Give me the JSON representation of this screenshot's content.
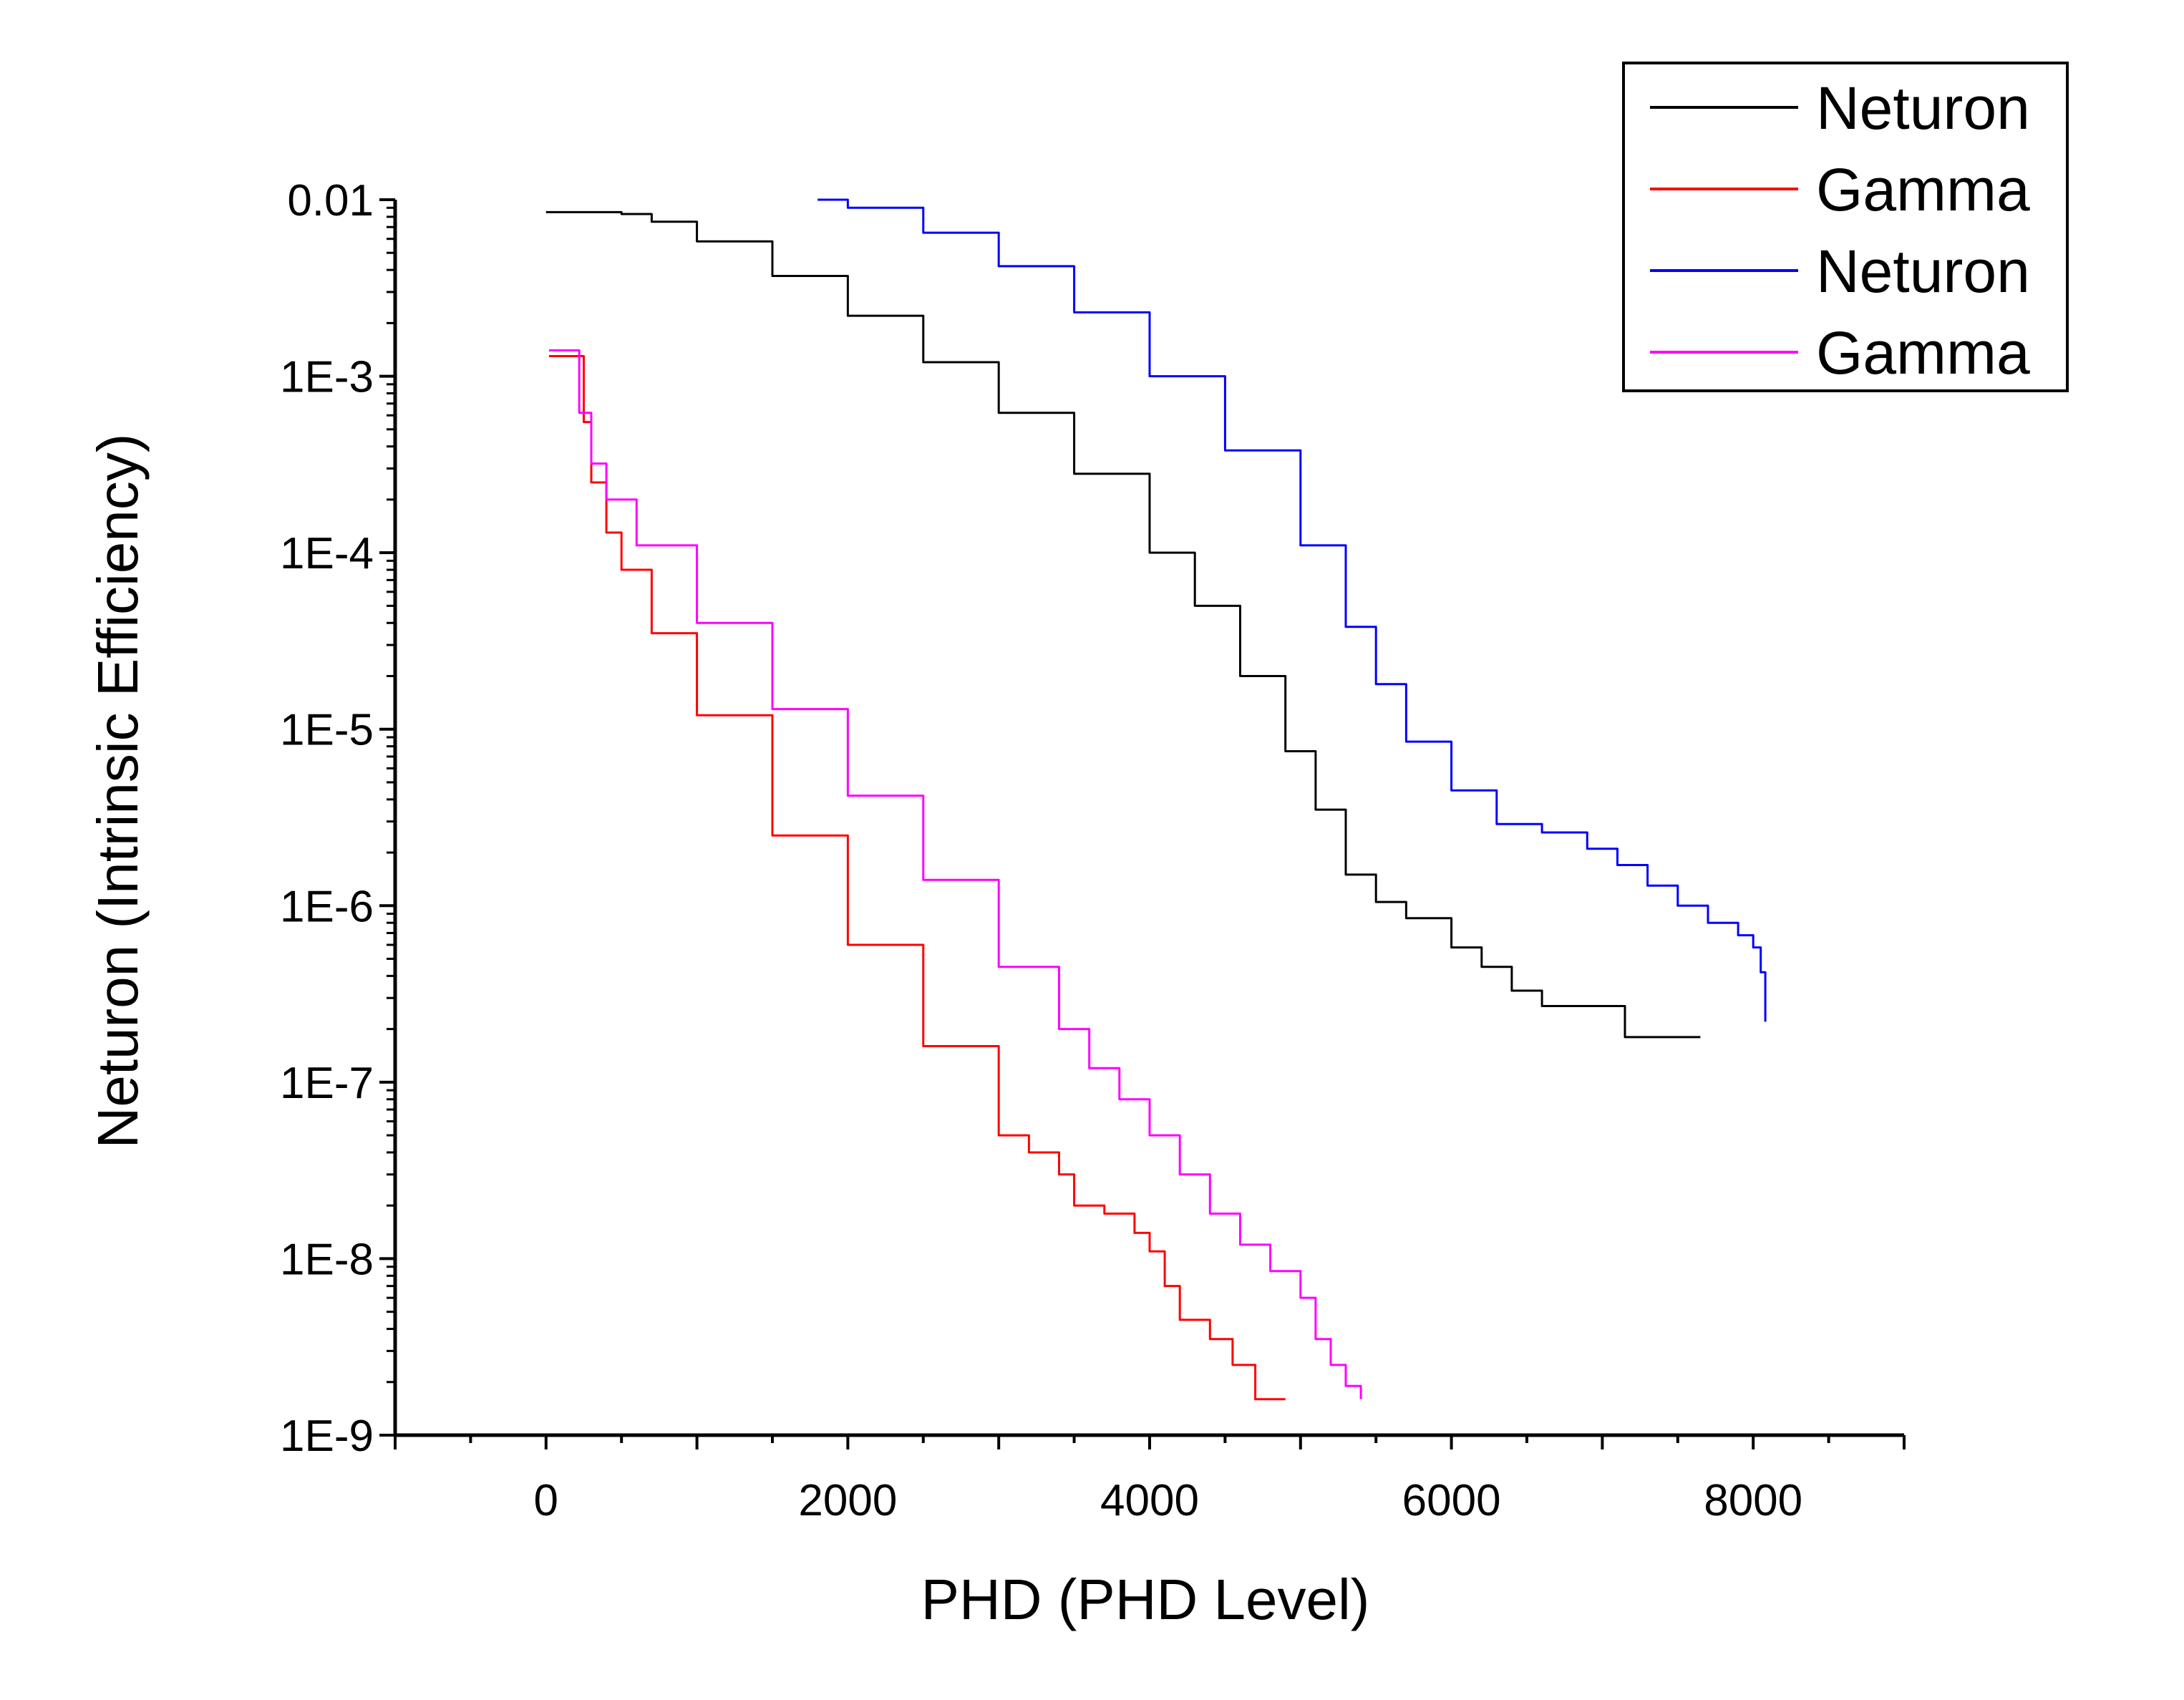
{
  "chart_data": {
    "type": "line",
    "title": "",
    "xlabel": "PHD (PHD Level)",
    "ylabel": "Neturon (Intrinsic Efficiency)",
    "xlim": [
      -1000,
      9000
    ],
    "ylim": [
      1e-09,
      0.01
    ],
    "yscale": "log",
    "x_ticks": [
      0,
      2000,
      4000,
      6000,
      8000
    ],
    "x_tick_labels": [
      "0",
      "2000",
      "4000",
      "6000",
      "8000"
    ],
    "y_ticks": [
      1e-09,
      1e-08,
      1e-07,
      1e-06,
      1e-05,
      0.0001,
      0.001,
      0.01
    ],
    "y_tick_labels": [
      "1E-9",
      "1E-8",
      "1E-7",
      "1E-6",
      "1E-5",
      "1E-4",
      "1E-3",
      "0.01"
    ],
    "grid": false,
    "legend_position": "top-right",
    "series": [
      {
        "name": "Neturon",
        "color": "#000000",
        "x": [
          0,
          300,
          500,
          700,
          1000,
          1500,
          2000,
          2500,
          3000,
          3500,
          4000,
          4300,
          4600,
          4900,
          5100,
          5300,
          5500,
          5700,
          6000,
          6200,
          6400,
          6600,
          6800,
          7000,
          7150,
          7400,
          7650
        ],
        "y": [
          0.0085,
          0.0085,
          0.0083,
          0.0075,
          0.0058,
          0.0037,
          0.0022,
          0.0012,
          0.00062,
          0.00028,
          0.0001,
          5e-05,
          2e-05,
          7.5e-06,
          3.5e-06,
          1.5e-06,
          1.05e-06,
          8.5e-07,
          5.8e-07,
          4.5e-07,
          3.3e-07,
          2.7e-07,
          2.7e-07,
          2.7e-07,
          1.8e-07,
          1.8e-07,
          1.8e-07
        ]
      },
      {
        "name": "Gamma",
        "color": "#ff0000",
        "x": [
          20,
          200,
          250,
          300,
          400,
          500,
          700,
          1000,
          1500,
          2000,
          2500,
          3000,
          3200,
          3400,
          3500,
          3700,
          3900,
          4000,
          4100,
          4200,
          4400,
          4550,
          4700,
          4800,
          4900
        ],
        "y": [
          0.0013,
          0.0013,
          0.00055,
          0.00025,
          0.00013,
          8e-05,
          3.5e-05,
          1.2e-05,
          2.5e-06,
          6e-07,
          1.6e-07,
          5e-08,
          4e-08,
          3e-08,
          2e-08,
          1.8e-08,
          1.4e-08,
          1.1e-08,
          7e-09,
          4.5e-09,
          3.5e-09,
          2.5e-09,
          1.6e-09,
          1.6e-09,
          1.6e-09
        ]
      },
      {
        "name": "Neturon",
        "color": "#0000ff",
        "x": [
          1800,
          2000,
          2500,
          3000,
          3500,
          4000,
          4500,
          5000,
          5300,
          5500,
          5700,
          6000,
          6300,
          6600,
          6900,
          7100,
          7300,
          7500,
          7700,
          7900,
          8000,
          8050,
          8080
        ],
        "y": [
          0.01,
          0.009,
          0.0065,
          0.0042,
          0.0023,
          0.001,
          0.00038,
          0.00011,
          3.8e-05,
          1.8e-05,
          8.5e-06,
          4.5e-06,
          2.9e-06,
          2.6e-06,
          2.1e-06,
          1.7e-06,
          1.3e-06,
          1e-06,
          8e-07,
          6.8e-07,
          5.8e-07,
          4.2e-07,
          2.2e-07
        ]
      },
      {
        "name": "Gamma",
        "color": "#ff00ff",
        "x": [
          20,
          180,
          220,
          300,
          400,
          600,
          1000,
          1500,
          2000,
          2500,
          3000,
          3400,
          3600,
          3800,
          4000,
          4200,
          4400,
          4600,
          4800,
          5000,
          5100,
          5200,
          5300,
          5400
        ],
        "y": [
          0.0014,
          0.0014,
          0.00062,
          0.00032,
          0.0002,
          0.00011,
          4e-05,
          1.3e-05,
          4.2e-06,
          1.4e-06,
          4.5e-07,
          2e-07,
          1.2e-07,
          8e-08,
          5e-08,
          3e-08,
          1.8e-08,
          1.2e-08,
          8.5e-09,
          6e-09,
          3.5e-09,
          2.5e-09,
          1.9e-09,
          1.6e-09
        ]
      }
    ]
  }
}
